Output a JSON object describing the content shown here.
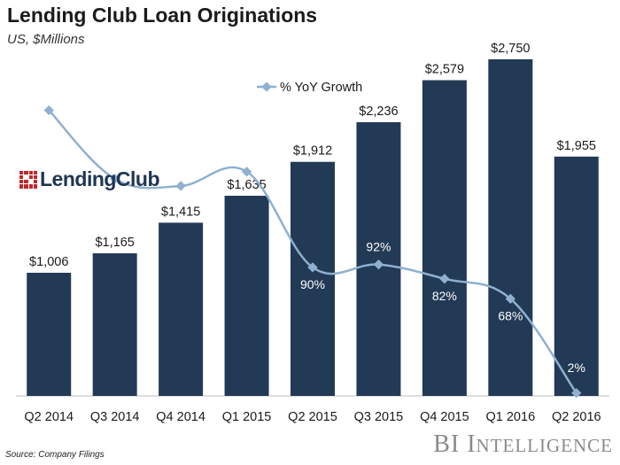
{
  "title": "Lending Club Loan Originations",
  "subtitle": "US, $Millions",
  "source": "Source: Company Filings",
  "brand": {
    "part1": "BI I",
    "part2": "NTELLIGENCE"
  },
  "logo": {
    "text": "LendingClub"
  },
  "colors": {
    "bar": "#223a55",
    "line": "#8fb0d0",
    "logo_red": "#c0262d",
    "logo_blue": "#1e3553"
  },
  "chart_data": {
    "type": "bar",
    "categories": [
      "Q2 2014",
      "Q3 2014",
      "Q4 2014",
      "Q1 2015",
      "Q2 2015",
      "Q3 2015",
      "Q4 2015",
      "Q1 2016",
      "Q2 2016"
    ],
    "series": [
      {
        "name": "",
        "type": "bar",
        "values": [
          1006,
          1165,
          1415,
          1635,
          1912,
          2236,
          2579,
          2750,
          1955
        ],
        "labels": [
          "$1,006",
          "$1,165",
          "$1,415",
          "$1,635",
          "$1,912",
          "$2,236",
          "$2,579",
          "$2,750",
          "$1,955"
        ]
      },
      {
        "name": "% YoY Growth",
        "type": "line",
        "values": [
          200,
          152,
          147,
          157,
          90,
          92,
          82,
          68,
          2
        ],
        "labels": [
          "",
          "",
          "",
          "",
          "90%",
          "92%",
          "82%",
          "68%",
          "2%"
        ]
      }
    ],
    "ylim": [
      0,
      2800
    ],
    "y2lim": [
      0,
      240
    ],
    "legend": "top-center",
    "grid": false
  }
}
